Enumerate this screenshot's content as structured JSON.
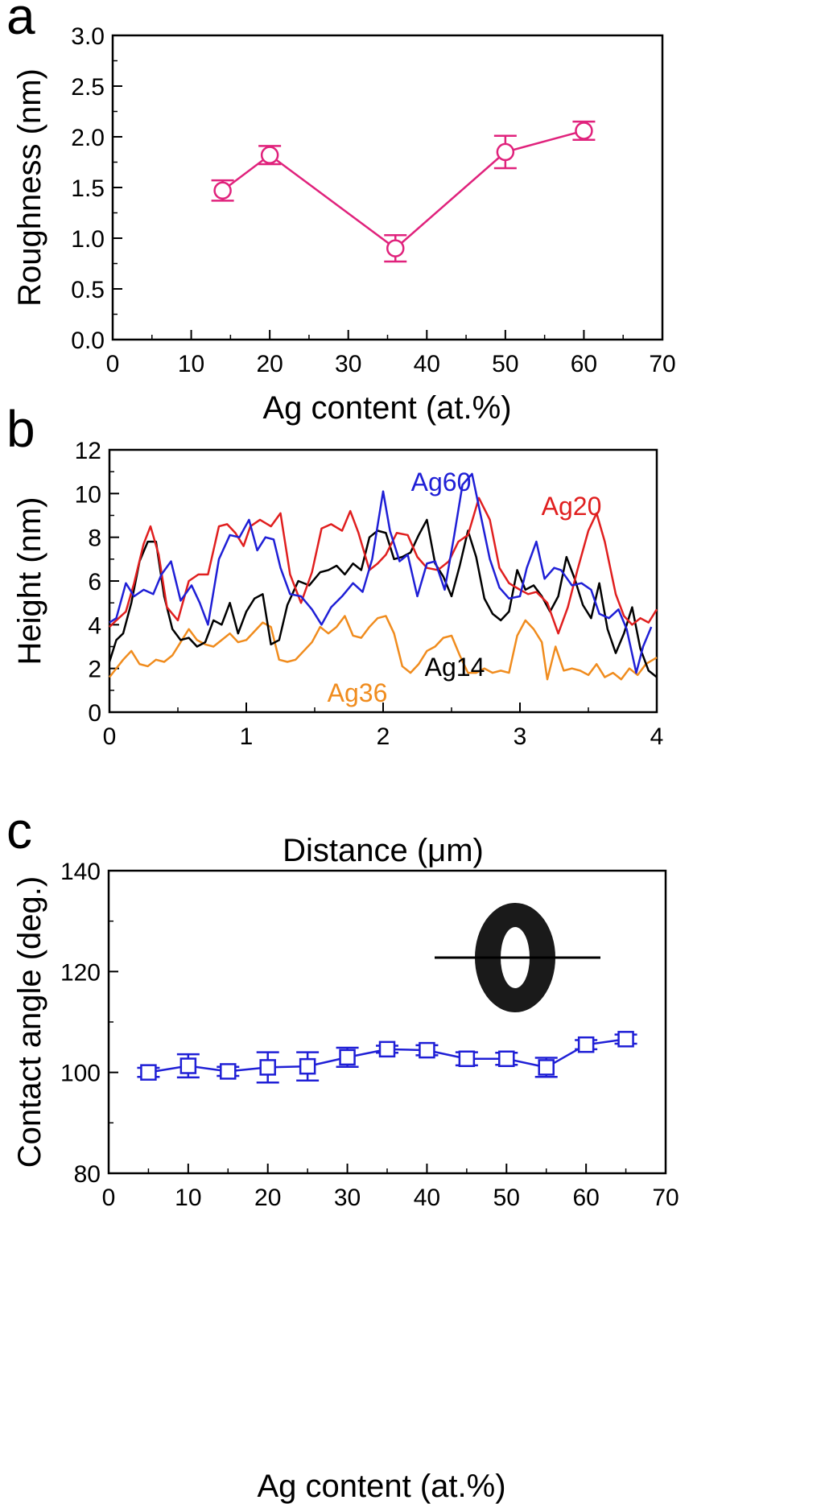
{
  "chart_data": [
    {
      "panel_label": "a",
      "type": "line",
      "xlabel": "Ag content (at.%)",
      "ylabel": "Roughness (nm)",
      "xlim": [
        0,
        70
      ],
      "ylim": [
        0.0,
        3.0
      ],
      "xticks": [
        "0",
        "10",
        "20",
        "30",
        "40",
        "50",
        "60",
        "70"
      ],
      "yticks": [
        "0.0",
        "0.5",
        "1.0",
        "1.5",
        "2.0",
        "2.5",
        "3.0"
      ],
      "marker": "circle",
      "color": "#e0227c",
      "series": [
        {
          "x": [
            14,
            20,
            36,
            50,
            60
          ],
          "y": [
            1.47,
            1.82,
            0.9,
            1.85,
            2.06
          ],
          "err": [
            0.1,
            0.09,
            0.13,
            0.16,
            0.09
          ]
        }
      ]
    },
    {
      "panel_label": "b",
      "type": "line",
      "xlabel": "Distance (μm)",
      "ylabel": "Height (nm)",
      "xlim": [
        0,
        4
      ],
      "ylim": [
        0,
        12
      ],
      "xticks": [
        "0",
        "1",
        "2",
        "3",
        "4"
      ],
      "yticks": [
        "0",
        "2",
        "4",
        "6",
        "8",
        "10",
        "12"
      ],
      "series": [
        {
          "name": "Ag60",
          "color": "#1f1fd6",
          "x": [
            0,
            0.05,
            0.12,
            0.18,
            0.25,
            0.32,
            0.38,
            0.45,
            0.52,
            0.6,
            0.66,
            0.72,
            0.8,
            0.88,
            0.95,
            1.02,
            1.08,
            1.14,
            1.2,
            1.25,
            1.32,
            1.4,
            1.48,
            1.55,
            1.62,
            1.7,
            1.78,
            1.85,
            1.92,
            2.0,
            2.05,
            2.12,
            2.18,
            2.25,
            2.32,
            2.38,
            2.45,
            2.52,
            2.58,
            2.65,
            2.72,
            2.78,
            2.85,
            2.92,
            3.0,
            3.05,
            3.12,
            3.18,
            3.25,
            3.3,
            3.38,
            3.45,
            3.52,
            3.58,
            3.65,
            3.72,
            3.78,
            3.85,
            3.9,
            3.96
          ],
          "y": [
            4.1,
            4.3,
            5.9,
            5.3,
            5.6,
            5.4,
            6.3,
            6.9,
            5.1,
            5.8,
            5.0,
            4.0,
            7.0,
            8.1,
            8.0,
            8.8,
            7.4,
            8.0,
            7.9,
            6.6,
            5.4,
            5.3,
            4.7,
            4.0,
            4.8,
            5.3,
            5.9,
            5.5,
            7.0,
            10.1,
            8.3,
            6.9,
            7.2,
            5.3,
            6.8,
            6.9,
            5.6,
            8.1,
            10.4,
            10.9,
            8.8,
            7.0,
            5.7,
            5.2,
            5.3,
            6.6,
            7.8,
            6.1,
            6.6,
            6.5,
            5.8,
            5.9,
            5.6,
            4.5,
            4.3,
            4.7,
            3.8,
            1.8,
            3.0,
            3.9
          ]
        },
        {
          "name": "Ag20",
          "color": "#e01f1f",
          "x": [
            0,
            0.05,
            0.12,
            0.18,
            0.25,
            0.3,
            0.36,
            0.42,
            0.5,
            0.58,
            0.65,
            0.72,
            0.8,
            0.86,
            0.92,
            0.98,
            1.03,
            1.1,
            1.18,
            1.25,
            1.32,
            1.4,
            1.48,
            1.55,
            1.62,
            1.7,
            1.76,
            1.82,
            1.9,
            1.96,
            2.02,
            2.1,
            2.18,
            2.25,
            2.32,
            2.4,
            2.48,
            2.55,
            2.62,
            2.7,
            2.78,
            2.85,
            2.92,
            3.0,
            3.06,
            3.12,
            3.2,
            3.28,
            3.35,
            3.42,
            3.5,
            3.56,
            3.62,
            3.7,
            3.76,
            3.82,
            3.88,
            3.94,
            4.0
          ],
          "y": [
            3.9,
            4.2,
            4.6,
            5.9,
            7.7,
            8.5,
            7.2,
            4.8,
            4.2,
            6.0,
            6.3,
            6.3,
            8.5,
            8.6,
            8.2,
            7.6,
            8.5,
            8.8,
            8.5,
            9.1,
            6.3,
            5.0,
            6.4,
            8.4,
            8.6,
            8.3,
            9.2,
            8.2,
            6.5,
            6.8,
            7.2,
            8.2,
            8.1,
            7.1,
            6.6,
            6.5,
            6.9,
            7.8,
            8.1,
            9.8,
            8.8,
            6.6,
            5.9,
            5.6,
            5.4,
            5.5,
            5.0,
            3.6,
            4.8,
            6.5,
            8.3,
            9.1,
            7.8,
            5.4,
            4.4,
            4.0,
            4.3,
            4.1,
            4.7
          ]
        },
        {
          "name": "Ag14",
          "color": "#000000",
          "x": [
            0,
            0.05,
            0.1,
            0.16,
            0.22,
            0.28,
            0.34,
            0.4,
            0.46,
            0.52,
            0.58,
            0.64,
            0.7,
            0.76,
            0.82,
            0.88,
            0.94,
            1.0,
            1.06,
            1.12,
            1.18,
            1.24,
            1.3,
            1.38,
            1.46,
            1.54,
            1.6,
            1.66,
            1.72,
            1.78,
            1.84,
            1.9,
            1.96,
            2.02,
            2.08,
            2.14,
            2.2,
            2.26,
            2.32,
            2.38,
            2.44,
            2.5,
            2.56,
            2.62,
            2.68,
            2.74,
            2.8,
            2.86,
            2.92,
            2.98,
            3.04,
            3.1,
            3.16,
            3.22,
            3.28,
            3.34,
            3.4,
            3.46,
            3.52,
            3.58,
            3.64,
            3.7,
            3.76,
            3.82,
            3.88,
            3.94,
            4.0
          ],
          "y": [
            2.3,
            3.3,
            3.6,
            5.0,
            6.9,
            7.8,
            7.8,
            5.3,
            3.8,
            3.3,
            3.4,
            3.0,
            3.2,
            4.2,
            4.0,
            5.0,
            3.6,
            4.6,
            5.2,
            5.4,
            3.1,
            3.3,
            4.9,
            6.0,
            5.8,
            6.4,
            6.5,
            6.7,
            6.3,
            6.8,
            6.5,
            8.0,
            8.3,
            8.2,
            7.0,
            7.1,
            7.3,
            8.1,
            8.8,
            6.8,
            6.2,
            5.3,
            6.7,
            8.3,
            7.1,
            5.2,
            4.5,
            4.2,
            4.6,
            6.5,
            5.6,
            5.8,
            5.3,
            4.6,
            5.3,
            7.1,
            6.1,
            4.9,
            4.3,
            5.9,
            3.8,
            2.7,
            3.6,
            4.8,
            2.9,
            1.9,
            1.6
          ]
        },
        {
          "name": "Ag36",
          "color": "#f08c1e",
          "x": [
            0,
            0.05,
            0.1,
            0.16,
            0.22,
            0.28,
            0.34,
            0.4,
            0.46,
            0.52,
            0.58,
            0.64,
            0.7,
            0.76,
            0.82,
            0.88,
            0.94,
            1.0,
            1.06,
            1.12,
            1.18,
            1.24,
            1.3,
            1.36,
            1.42,
            1.48,
            1.54,
            1.6,
            1.66,
            1.72,
            1.78,
            1.84,
            1.9,
            1.96,
            2.02,
            2.08,
            2.14,
            2.2,
            2.26,
            2.32,
            2.38,
            2.44,
            2.5,
            2.56,
            2.62,
            2.68,
            2.74,
            2.8,
            2.86,
            2.92,
            2.98,
            3.04,
            3.1,
            3.16,
            3.2,
            3.26,
            3.32,
            3.38,
            3.44,
            3.5,
            3.56,
            3.62,
            3.68,
            3.74,
            3.8,
            3.86,
            3.92,
            4.0
          ],
          "y": [
            1.6,
            2.0,
            2.4,
            2.8,
            2.2,
            2.1,
            2.4,
            2.3,
            2.6,
            3.2,
            3.8,
            3.3,
            3.1,
            3.0,
            3.3,
            3.6,
            3.2,
            3.3,
            3.7,
            4.1,
            3.9,
            2.4,
            2.3,
            2.4,
            2.8,
            3.2,
            3.9,
            3.6,
            3.9,
            4.4,
            3.5,
            3.4,
            3.9,
            4.3,
            4.4,
            3.6,
            2.1,
            1.8,
            2.2,
            2.8,
            3.0,
            3.4,
            3.5,
            2.6,
            1.8,
            1.8,
            2.0,
            1.8,
            1.9,
            1.8,
            3.5,
            4.2,
            3.8,
            3.2,
            1.5,
            3.0,
            1.9,
            2.0,
            1.9,
            1.7,
            2.2,
            1.6,
            1.8,
            1.5,
            2.0,
            1.7,
            2.2,
            2.5
          ]
        }
      ]
    },
    {
      "panel_label": "c",
      "type": "line",
      "xlabel": "Ag content (at.%)",
      "ylabel": "Contact angle (deg.)",
      "xlim": [
        0,
        70
      ],
      "ylim": [
        80,
        140
      ],
      "xticks": [
        "0",
        "10",
        "20",
        "30",
        "40",
        "50",
        "60",
        "70"
      ],
      "yticks": [
        "80",
        "100",
        "120",
        "140"
      ],
      "marker": "square",
      "color": "#1f1fd6",
      "series": [
        {
          "x": [
            5,
            10,
            15,
            20,
            25,
            30,
            35,
            40,
            45,
            50,
            55,
            60,
            65
          ],
          "y": [
            100.0,
            101.3,
            100.2,
            101.0,
            101.2,
            103.0,
            104.6,
            104.4,
            102.7,
            102.7,
            101.0,
            105.5,
            106.6
          ],
          "err": [
            0.9,
            2.3,
            0.9,
            3.0,
            2.8,
            1.9,
            0.7,
            1.0,
            1.3,
            1.2,
            1.9,
            0.9,
            0.9
          ]
        }
      ]
    }
  ]
}
